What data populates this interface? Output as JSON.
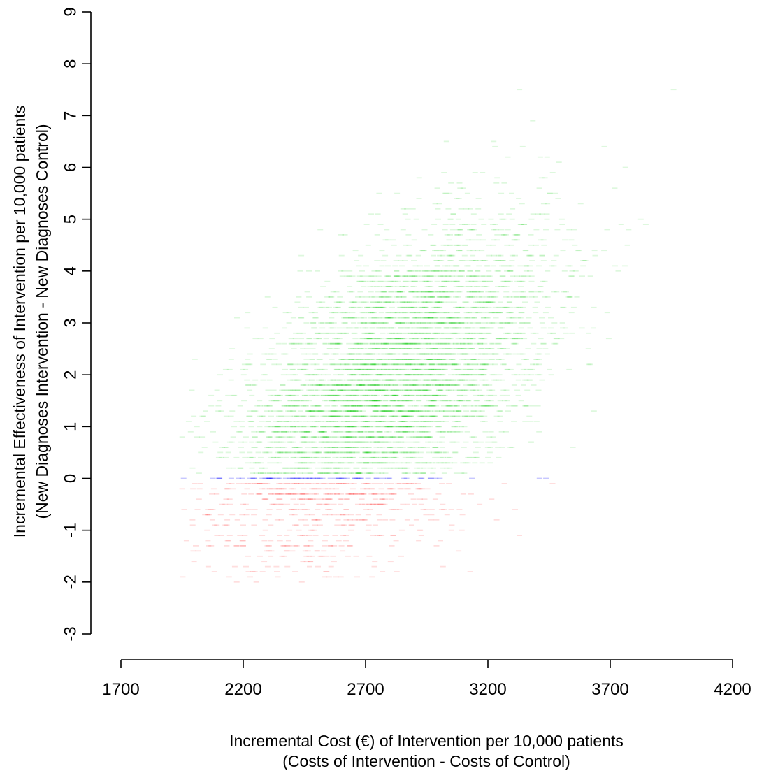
{
  "chart_data": {
    "type": "scatter",
    "title": "",
    "xlabel_line1": "Incremental Cost (€) of Intervention per 10,000 patients",
    "xlabel_line2": "(Costs of Intervention - Costs of Control)",
    "ylabel_line1": "Incremental Effectiveness of Intervention per 10,000 patients",
    "ylabel_line2": "(New Diagnoses Intervention - New Diagnoses Control)",
    "xlim": [
      1700,
      4200
    ],
    "ylim": [
      -3,
      9
    ],
    "x_ticks": [
      "1700",
      "2200",
      "2700",
      "3200",
      "3700",
      "4200"
    ],
    "y_ticks": [
      "-3",
      "-2",
      "-1",
      "0",
      "1",
      "2",
      "3",
      "4",
      "5",
      "6",
      "7",
      "8",
      "9"
    ],
    "grid": false,
    "legend": "none",
    "point_colors": {
      "positive_effect": "#00cc00",
      "zero_effect": "#0000ff",
      "negative_effect": "#ff0000"
    },
    "distribution": {
      "description_values": "cloud of simulated points; mean cost and mean effect",
      "mean_cost": 2800,
      "mean_effect": 1.8,
      "sd_cost": 320,
      "sd_effect": 1.5,
      "correlation": 0.55,
      "effect_step": 0.1,
      "effect_min": -2.0,
      "effect_max": 7.6,
      "cost_min": 1950,
      "cost_max": 4000
    }
  }
}
